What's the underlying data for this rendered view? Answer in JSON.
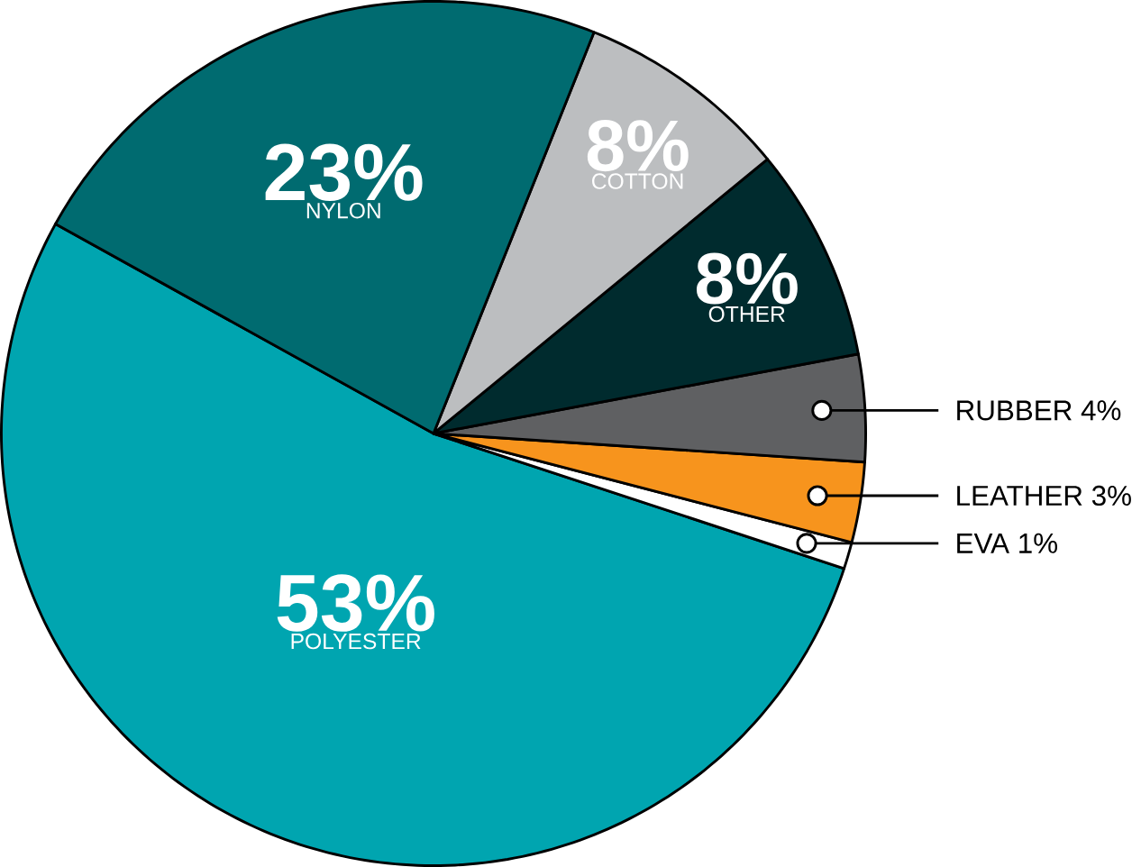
{
  "chart_data": {
    "type": "pie",
    "categories": [
      "POLYESTER",
      "EVA",
      "LEATHER",
      "RUBBER",
      "OTHER",
      "COTTON",
      "NYLON"
    ],
    "values": [
      53,
      1,
      3,
      4,
      8,
      8,
      23
    ],
    "value_labels": [
      "53%",
      "1%",
      "3%",
      "4%",
      "8%",
      "8%",
      "23%"
    ],
    "colors": [
      "#00a5b0",
      "#ffffff",
      "#f7941d",
      "#5f6062",
      "#002b2e",
      "#bcbec0",
      "#006b70"
    ]
  }
}
